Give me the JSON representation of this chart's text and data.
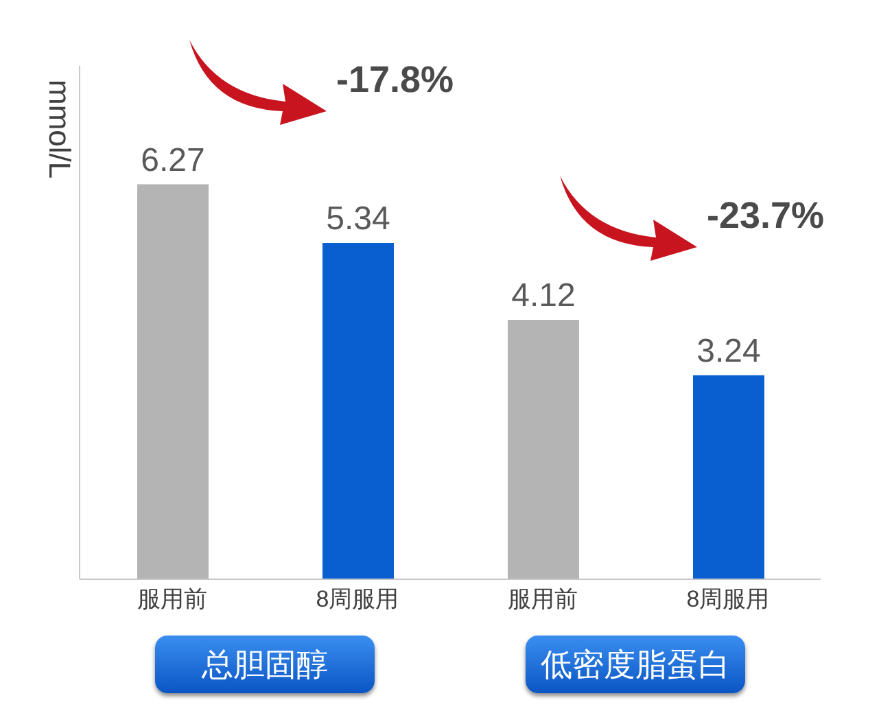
{
  "chart_data": {
    "type": "bar",
    "ylabel": "mmol/L",
    "categories": [
      "服用前",
      "8周服用",
      "服用前",
      "8周服用"
    ],
    "values": [
      6.27,
      5.34,
      4.12,
      3.24
    ],
    "colors": [
      "#b4b4b4",
      "#0a5fd0",
      "#b4b4b4",
      "#0a5fd0"
    ],
    "data_labels": true,
    "annotations": [
      "总胆固醇",
      "低密度脂蛋白",
      "-17.8%",
      "-23.7%"
    ]
  }
}
